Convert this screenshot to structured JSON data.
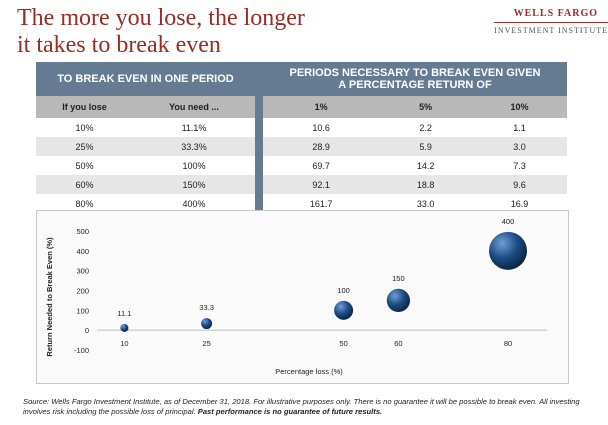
{
  "title": {
    "line1": "The more you lose, the longer",
    "line2": "it takes to break even"
  },
  "logo": {
    "name": "WELLS FARGO",
    "sub": "INVESTMENT INSTITUTE"
  },
  "table": {
    "left_header": "TO BREAK EVEN IN ONE PERIOD",
    "right_header_line1": "PERIODS NECESSARY TO BREAK EVEN GIVEN",
    "right_header_line2": "A PERCENTAGE RETURN OF",
    "col_lose": "If you lose",
    "col_need": "You need ...",
    "col_1": "1%",
    "col_5": "5%",
    "col_10": "10%",
    "rows": [
      {
        "lose": "10%",
        "need": "11.1%",
        "r1": "10.6",
        "r5": "2.2",
        "r10": "1.1"
      },
      {
        "lose": "25%",
        "need": "33.3%",
        "r1": "28.9",
        "r5": "5.9",
        "r10": "3.0"
      },
      {
        "lose": "50%",
        "need": "100%",
        "r1": "69.7",
        "r5": "14.2",
        "r10": "7.3"
      },
      {
        "lose": "60%",
        "need": "150%",
        "r1": "92.1",
        "r5": "18.8",
        "r10": "9.6"
      },
      {
        "lose": "80%",
        "need": "400%",
        "r1": "161.7",
        "r5": "33.0",
        "r10": "16.9"
      }
    ]
  },
  "chart_data": {
    "type": "scatter",
    "title": "",
    "xlabel": "Percentage loss (%)",
    "ylabel": "Return Needed to Break Even (%)",
    "ylim": [
      -100,
      500
    ],
    "yticks": [
      -100,
      0,
      100,
      200,
      300,
      400,
      500
    ],
    "xticks": [
      10,
      25,
      50,
      60,
      80
    ],
    "grid": false,
    "points": [
      {
        "x": 10,
        "y": 11.1,
        "label": "11.1"
      },
      {
        "x": 25,
        "y": 33.3,
        "label": "33.3"
      },
      {
        "x": 50,
        "y": 100,
        "label": "100"
      },
      {
        "x": 60,
        "y": 150,
        "label": "150"
      },
      {
        "x": 80,
        "y": 400,
        "label": "400"
      }
    ],
    "marker_color": "#1d4e86"
  },
  "source": {
    "text": "Source: Wells Fargo Investment Institute, as of December 31, 2018. For illustrative purposes only. There is no guarantee it will be possible to break even. All investing involves risk including the possible loss of principal. ",
    "bold": "Past performance is no guarantee of future results."
  }
}
